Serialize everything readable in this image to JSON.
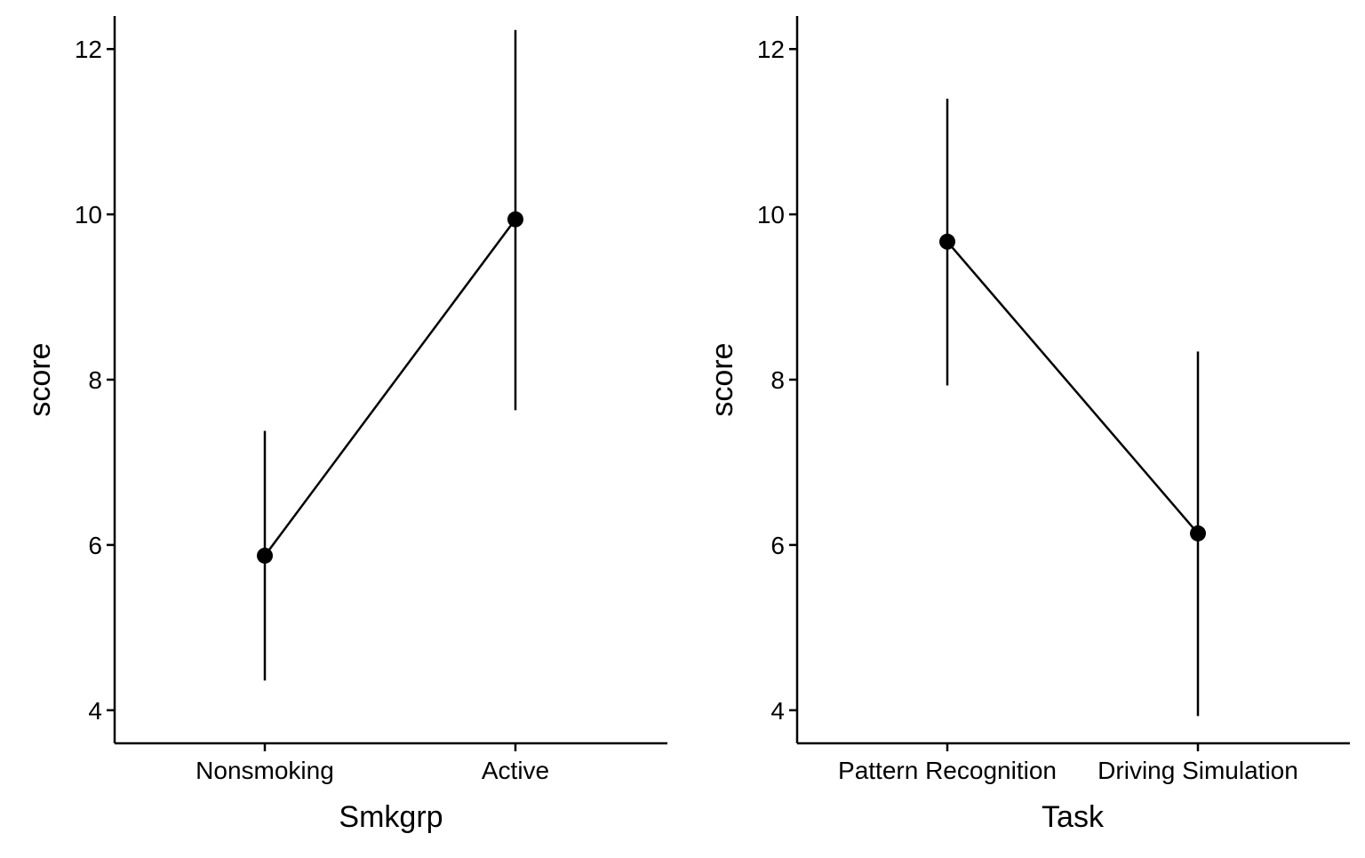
{
  "chart_data": [
    {
      "type": "point-errorbar",
      "xlabel": "Smkgrp",
      "ylabel": "score",
      "ylim": [
        3.6,
        12.4
      ],
      "yticks": [
        4,
        6,
        8,
        10,
        12
      ],
      "yticklabels": [
        "4",
        "6",
        "8",
        "10",
        "12"
      ],
      "categories": [
        "Nonsmoking",
        "Active"
      ],
      "values": [
        5.87,
        9.94
      ],
      "lower": [
        4.36,
        7.63
      ],
      "upper": [
        7.38,
        12.23
      ],
      "grid": false,
      "legend": "none"
    },
    {
      "type": "point-errorbar",
      "xlabel": "Task",
      "ylabel": "score",
      "ylim": [
        3.6,
        12.4
      ],
      "yticks": [
        4,
        6,
        8,
        10,
        12
      ],
      "yticklabels": [
        "4",
        "6",
        "8",
        "10",
        "12"
      ],
      "categories": [
        "Pattern Recognition",
        "Driving Simulation"
      ],
      "values": [
        9.67,
        6.14
      ],
      "lower": [
        7.93,
        3.93
      ],
      "upper": [
        11.4,
        8.34
      ],
      "grid": false,
      "legend": "none"
    }
  ],
  "colors": {
    "ink": "#000000",
    "background": "#ffffff"
  }
}
